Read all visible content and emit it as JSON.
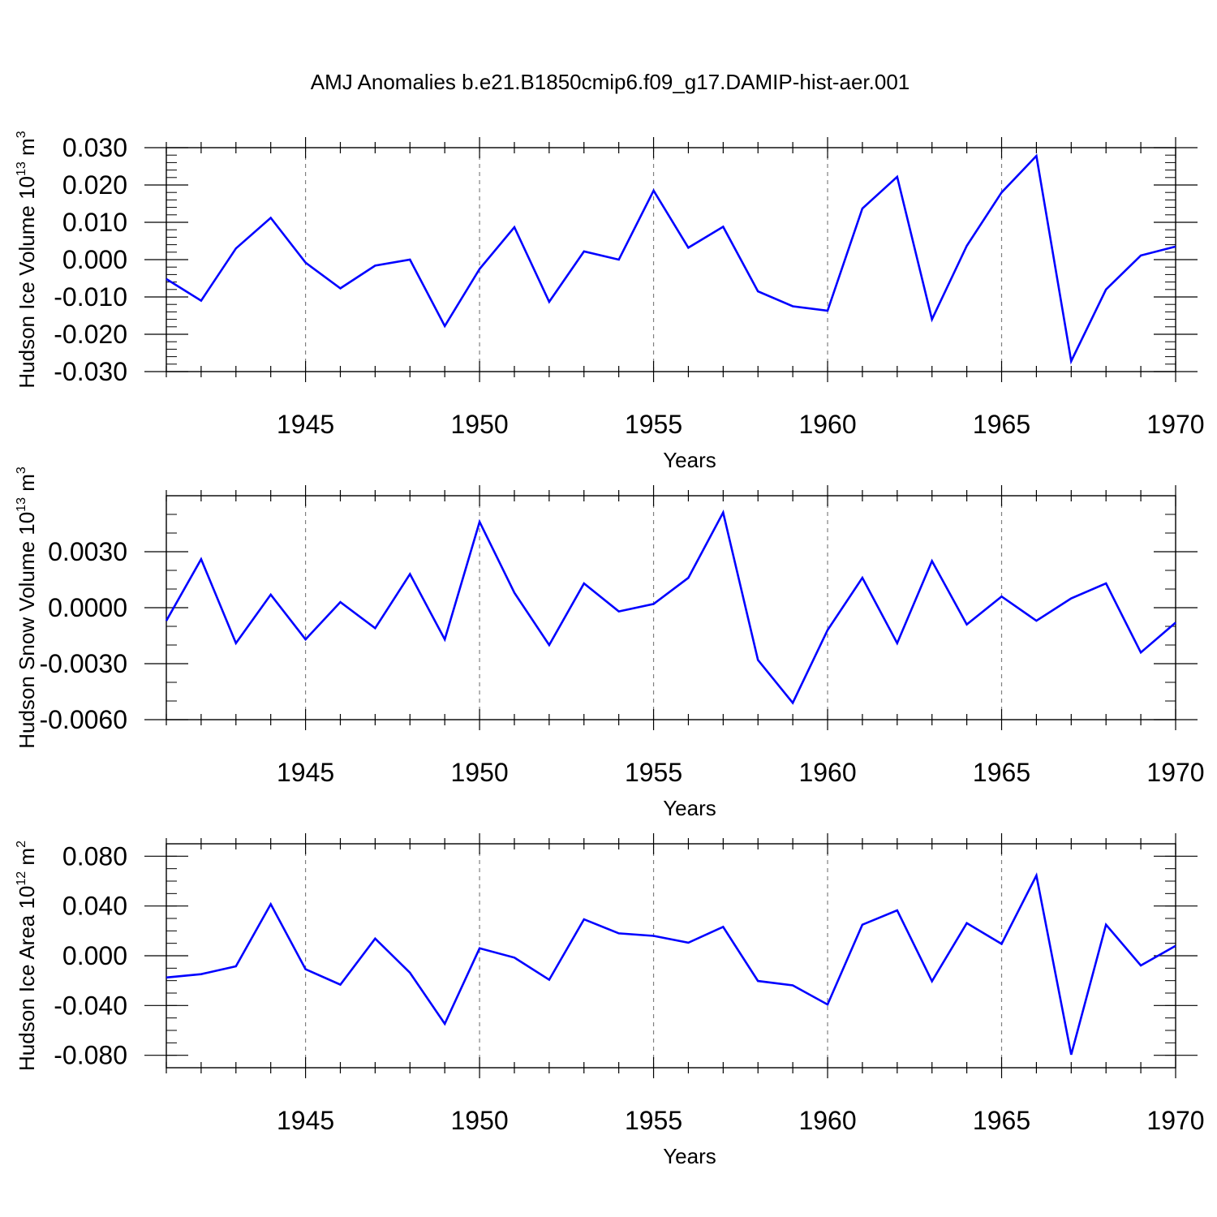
{
  "title": "AMJ Anomalies b.e21.B1850cmip6.f09_g17.DAMIP-hist-aer.001",
  "line_color": "#0000ff",
  "chart_data": [
    {
      "type": "line",
      "ylabel_text": "Hudson Ice Volume 10",
      "ylabel_exp": "13",
      "ylabel_unit": " m",
      "ylabel_unit_exp": "3",
      "xlabel": "Years",
      "xlim": [
        1941,
        1970
      ],
      "ylim": [
        -0.03,
        0.03
      ],
      "y_ticks": [
        -0.03,
        -0.02,
        -0.01,
        0.0,
        0.01,
        0.02,
        0.03
      ],
      "y_tick_labels": [
        "-0.030",
        "-0.020",
        "-0.010",
        "0.000",
        "0.010",
        "0.020",
        "0.030"
      ],
      "y_minor_step": 0.002,
      "x_ticks": [
        1945,
        1950,
        1955,
        1960,
        1965,
        1970
      ],
      "x_tick_labels": [
        "1945",
        "1950",
        "1955",
        "1960",
        "1965",
        "1970"
      ],
      "grid_x": true,
      "x": [
        1941,
        1942,
        1943,
        1944,
        1945,
        1946,
        1947,
        1948,
        1949,
        1950,
        1951,
        1952,
        1953,
        1954,
        1955,
        1956,
        1957,
        1958,
        1959,
        1960,
        1961,
        1962,
        1963,
        1964,
        1965,
        1966,
        1967,
        1968,
        1969,
        1970
      ],
      "series": [
        {
          "values": [
            -0.0052,
            -0.011,
            0.003,
            0.0112,
            -0.0008,
            -0.0077,
            -0.0016,
            0.0,
            -0.0178,
            -0.0025,
            0.0087,
            -0.0113,
            0.0022,
            0.0,
            0.0185,
            0.0032,
            0.0088,
            -0.0085,
            -0.0125,
            -0.0137,
            0.0137,
            0.0222,
            -0.016,
            0.0037,
            0.018,
            0.0278,
            -0.0272,
            -0.008,
            0.0011,
            0.0035
          ]
        }
      ]
    },
    {
      "type": "line",
      "ylabel_text": "Hudson Snow Volume 10",
      "ylabel_exp": "13",
      "ylabel_unit": " m",
      "ylabel_unit_exp": "3",
      "xlabel": "Years",
      "xlim": [
        1941,
        1970
      ],
      "ylim": [
        -0.006,
        0.006
      ],
      "y_ticks": [
        -0.006,
        -0.003,
        0.0,
        0.003
      ],
      "y_tick_labels": [
        "-0.0060",
        "-0.0030",
        "0.0000",
        "0.0030"
      ],
      "y_minor_step": 0.001,
      "x_ticks": [
        1945,
        1950,
        1955,
        1960,
        1965,
        1970
      ],
      "x_tick_labels": [
        "1945",
        "1950",
        "1955",
        "1960",
        "1965",
        "1970"
      ],
      "grid_x": true,
      "x": [
        1941,
        1942,
        1943,
        1944,
        1945,
        1946,
        1947,
        1948,
        1949,
        1950,
        1951,
        1952,
        1953,
        1954,
        1955,
        1956,
        1957,
        1958,
        1959,
        1960,
        1961,
        1962,
        1963,
        1964,
        1965,
        1966,
        1967,
        1968,
        1969,
        1970
      ],
      "series": [
        {
          "values": [
            -0.0007,
            0.0026,
            -0.0019,
            0.0007,
            -0.0017,
            0.0003,
            -0.0011,
            0.0018,
            -0.0017,
            0.0046,
            0.0008,
            -0.002,
            0.0013,
            -0.0002,
            0.0002,
            0.0016,
            0.0051,
            -0.0028,
            -0.0051,
            -0.0012,
            0.0016,
            -0.0019,
            0.0025,
            -0.0009,
            0.0006,
            -0.0007,
            0.0005,
            0.0013,
            -0.0024,
            -0.0008
          ]
        }
      ]
    },
    {
      "type": "line",
      "ylabel_text": "Hudson Ice Area 10",
      "ylabel_exp": "12",
      "ylabel_unit": " m",
      "ylabel_unit_exp": "2",
      "xlabel": "Years",
      "xlim": [
        1941,
        1970
      ],
      "ylim": [
        -0.09,
        0.09
      ],
      "y_ticks": [
        -0.08,
        -0.04,
        0.0,
        0.04,
        0.08
      ],
      "y_tick_labels": [
        "-0.080",
        "-0.040",
        "0.000",
        "0.040",
        "0.080"
      ],
      "y_minor_step": 0.01,
      "x_ticks": [
        1945,
        1950,
        1955,
        1960,
        1965,
        1970
      ],
      "x_tick_labels": [
        "1945",
        "1950",
        "1955",
        "1960",
        "1965",
        "1970"
      ],
      "grid_x": true,
      "x": [
        1941,
        1942,
        1943,
        1944,
        1945,
        1946,
        1947,
        1948,
        1949,
        1950,
        1951,
        1952,
        1953,
        1954,
        1955,
        1956,
        1957,
        1958,
        1959,
        1960,
        1961,
        1962,
        1963,
        1964,
        1965,
        1966,
        1967,
        1968,
        1969,
        1970
      ],
      "series": [
        {
          "values": [
            -0.0175,
            -0.0148,
            -0.0085,
            0.0415,
            -0.0108,
            -0.0232,
            0.0138,
            -0.0137,
            -0.0547,
            0.006,
            -0.0015,
            -0.0193,
            0.0293,
            0.018,
            0.016,
            0.0105,
            0.0232,
            -0.0203,
            -0.0238,
            -0.0392,
            0.025,
            0.0365,
            -0.0205,
            0.0262,
            0.0095,
            0.0645,
            -0.0795,
            0.025,
            -0.0078,
            0.008
          ]
        }
      ]
    }
  ]
}
